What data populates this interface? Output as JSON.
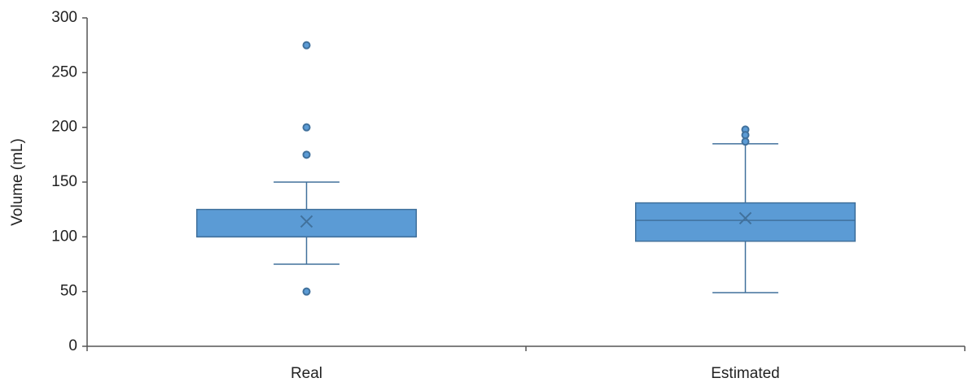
{
  "chart_data": {
    "type": "box",
    "y_label": "Volume (mL)",
    "categories": [
      "Real",
      "Estimated"
    ],
    "boxes": [
      {
        "whisker_low": 75,
        "q1": 100,
        "median": 100,
        "q3": 125,
        "whisker_high": 150,
        "mean": 114,
        "outliers": [
          275,
          200,
          175,
          50
        ]
      },
      {
        "whisker_low": 49,
        "q1": 96,
        "median": 115,
        "q3": 131,
        "whisker_high": 185,
        "mean": 117,
        "outliers": [
          198,
          193,
          187
        ]
      }
    ],
    "color": "#5b9bd5",
    "edge_color": "#41719c",
    "ylim": [
      0,
      300
    ],
    "yticks": [
      0,
      50,
      100,
      150,
      200,
      250,
      300
    ],
    "grid": false
  }
}
